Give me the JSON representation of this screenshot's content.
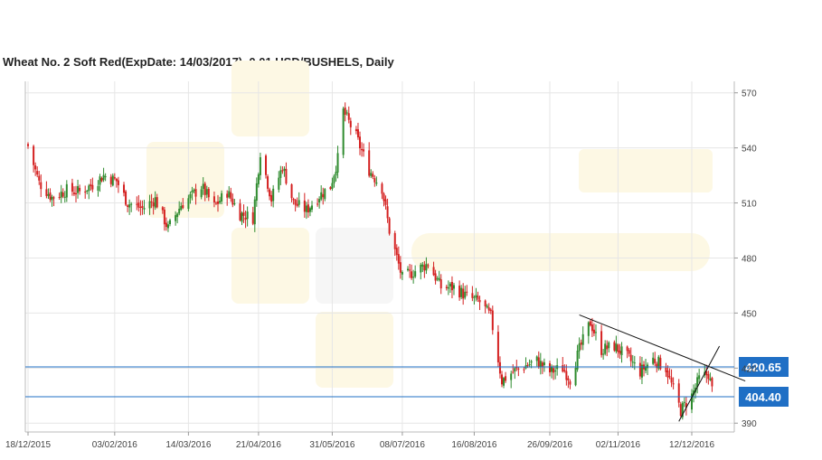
{
  "chart_data": {
    "type": "candlestick",
    "title": "Wheat  No. 2 Soft Red(ExpDate: 14/03/2017), 0.01 USD/BUSHELS, Daily",
    "watermark": "",
    "ylim": [
      385,
      575
    ],
    "y_ticks": [
      "570",
      "540",
      "510",
      "480",
      "450",
      "420",
      "390"
    ],
    "x_ticks": [
      "18/12/2015",
      "03/02/2016",
      "14/03/2016",
      "21/04/2016",
      "31/05/2016",
      "08/07/2016",
      "16/08/2016",
      "26/09/2016",
      "02/11/2016",
      "12/12/2016"
    ],
    "colors": {
      "up": "#2e8b2e",
      "down": "#d42020",
      "level_line": "#1f6fc5",
      "trend_line": "#111111",
      "grid": "#e6e6e6"
    },
    "levels": [
      {
        "label": "420.65",
        "value": 420.65
      },
      {
        "label": "404.40",
        "value": 404.4
      }
    ],
    "trend_lines": [
      {
        "from": [
          "2016-10-12",
          449
        ],
        "to": [
          "2017-01-10",
          413
        ]
      },
      {
        "from": [
          "2016-12-05",
          391
        ],
        "to": [
          "2016-12-27",
          432
        ]
      }
    ],
    "close_anchors": [
      [
        "2015-12-18",
        541
      ],
      [
        "2015-12-24",
        521
      ],
      [
        "2015-12-31",
        513
      ],
      [
        "2016-01-08",
        517
      ],
      [
        "2016-01-15",
        516
      ],
      [
        "2016-01-22",
        520
      ],
      [
        "2016-01-28",
        525
      ],
      [
        "2016-02-04",
        522
      ],
      [
        "2016-02-10",
        510
      ],
      [
        "2016-02-18",
        507
      ],
      [
        "2016-02-25",
        512
      ],
      [
        "2016-03-03",
        496
      ],
      [
        "2016-03-10",
        509
      ],
      [
        "2016-03-16",
        514
      ],
      [
        "2016-03-21",
        519
      ],
      [
        "2016-03-28",
        508
      ],
      [
        "2016-04-04",
        516
      ],
      [
        "2016-04-11",
        504
      ],
      [
        "2016-04-18",
        502
      ],
      [
        "2016-04-22",
        538
      ],
      [
        "2016-04-28",
        512
      ],
      [
        "2016-05-04",
        530
      ],
      [
        "2016-05-10",
        510
      ],
      [
        "2016-05-17",
        506
      ],
      [
        "2016-05-24",
        514
      ],
      [
        "2016-05-30",
        519
      ],
      [
        "2016-06-03",
        534
      ],
      [
        "2016-06-06",
        560
      ],
      [
        "2016-06-13",
        546
      ],
      [
        "2016-06-20",
        528
      ],
      [
        "2016-06-27",
        518
      ],
      [
        "2016-07-01",
        495
      ],
      [
        "2016-07-08",
        469
      ],
      [
        "2016-07-15",
        473
      ],
      [
        "2016-07-22",
        477
      ],
      [
        "2016-07-29",
        464
      ],
      [
        "2016-08-05",
        464
      ],
      [
        "2016-08-12",
        459
      ],
      [
        "2016-08-19",
        456
      ],
      [
        "2016-08-25",
        448
      ],
      [
        "2016-08-31",
        413
      ],
      [
        "2016-09-06",
        418
      ],
      [
        "2016-09-12",
        421
      ],
      [
        "2016-09-19",
        424
      ],
      [
        "2016-09-26",
        418
      ],
      [
        "2016-10-03",
        420
      ],
      [
        "2016-10-07",
        414
      ],
      [
        "2016-10-12",
        430
      ],
      [
        "2016-10-18",
        445
      ],
      [
        "2016-10-24",
        430
      ],
      [
        "2016-10-31",
        432
      ],
      [
        "2016-11-07",
        426
      ],
      [
        "2016-11-14",
        418
      ],
      [
        "2016-11-21",
        425
      ],
      [
        "2016-11-28",
        420
      ],
      [
        "2016-12-02",
        408
      ],
      [
        "2016-12-06",
        397
      ],
      [
        "2016-12-12",
        405
      ],
      [
        "2016-12-16",
        414
      ],
      [
        "2016-12-21",
        417
      ],
      [
        "2016-12-23",
        408
      ]
    ]
  }
}
